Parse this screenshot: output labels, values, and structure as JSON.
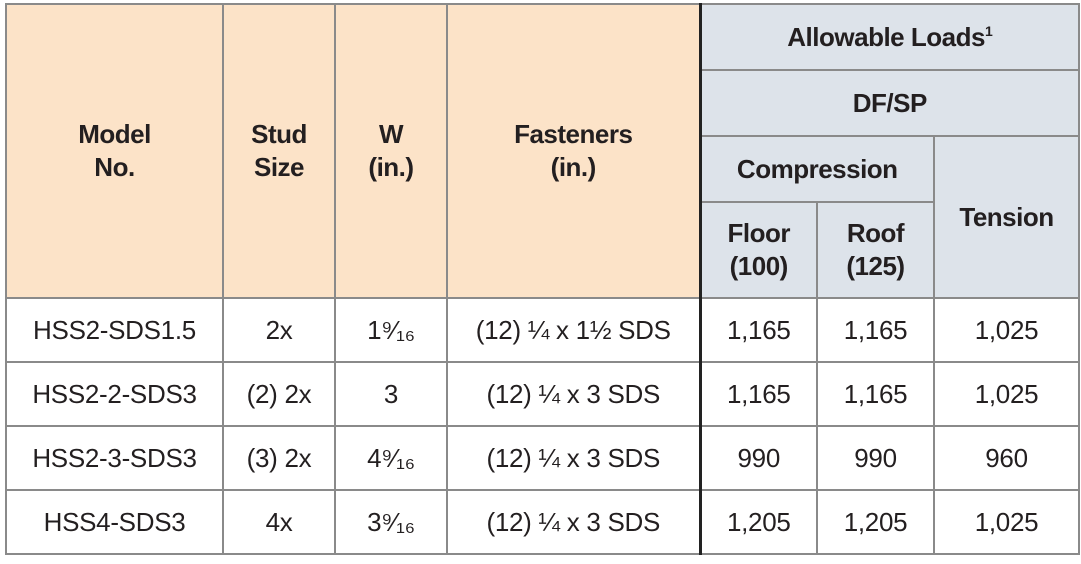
{
  "header": {
    "model": [
      "Model",
      "No."
    ],
    "stud_size": [
      "Stud",
      "Size"
    ],
    "w": [
      "W",
      "(in.)"
    ],
    "fasteners": [
      "Fasteners",
      "(in.)"
    ],
    "allowable_loads": "Allowable Loads",
    "allowable_loads_note": "1",
    "species": "DF/SP",
    "compression": "Compression",
    "floor": [
      "Floor",
      "(100)"
    ],
    "roof": [
      "Roof",
      "(125)"
    ],
    "tension": "Tension"
  },
  "table": {
    "rows": [
      [
        "HSS2-SDS1.5",
        "2x",
        "1⁹⁄₁₆",
        "(12) ¼ x 1½ SDS",
        "1,165",
        "1,165",
        "1,025"
      ],
      [
        "HSS2-2-SDS3",
        "(2) 2x",
        "3",
        "(12) ¼ x 3 SDS",
        "1,165",
        "1,165",
        "1,025"
      ],
      [
        "HSS2-3-SDS3",
        "(3) 2x",
        "4⁹⁄₁₆",
        "(12) ¼ x 3 SDS",
        "990",
        "990",
        "960"
      ],
      [
        "HSS4-SDS3",
        "4x",
        "3⁹⁄₁₆",
        "(12) ¼ x 3 SDS",
        "1,205",
        "1,205",
        "1,025"
      ]
    ]
  }
}
